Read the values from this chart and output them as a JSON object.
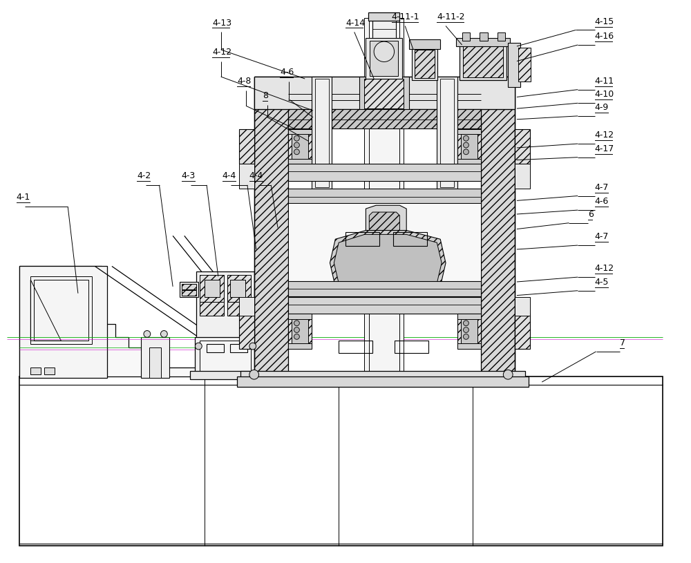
{
  "bg": "#ffffff",
  "lc": "#000000",
  "gc": "#888888",
  "figsize": [
    10.0,
    8.15
  ],
  "dpi": 100,
  "fs": 9,
  "right_labels": [
    [
      "4-15",
      865,
      30
    ],
    [
      "4-16",
      865,
      52
    ],
    [
      "4-11",
      865,
      118
    ],
    [
      "4-10",
      865,
      138
    ],
    [
      "4-9",
      865,
      157
    ],
    [
      "4-12",
      865,
      198
    ],
    [
      "4-17",
      865,
      218
    ],
    [
      "4-7",
      865,
      275
    ],
    [
      "4-6",
      865,
      296
    ],
    [
      "4-7",
      865,
      348
    ],
    [
      "4-12",
      865,
      395
    ],
    [
      "4-5",
      865,
      415
    ],
    [
      "7",
      905,
      505
    ],
    [
      "6",
      855,
      315
    ]
  ],
  "top_labels": [
    [
      "4-13",
      300,
      32
    ],
    [
      "4-12",
      300,
      75
    ],
    [
      "4-8",
      338,
      118
    ],
    [
      "8",
      375,
      140
    ],
    [
      "4-6",
      400,
      105
    ],
    [
      "4-14",
      498,
      32
    ],
    [
      "4-11-1",
      565,
      23
    ],
    [
      "4-11-2",
      630,
      23
    ]
  ],
  "left_labels": [
    [
      "4-1",
      14,
      290
    ],
    [
      "4-2",
      192,
      258
    ],
    [
      "4-3",
      258,
      258
    ],
    [
      "4-4",
      318,
      258
    ],
    [
      "4-4",
      358,
      258
    ]
  ]
}
